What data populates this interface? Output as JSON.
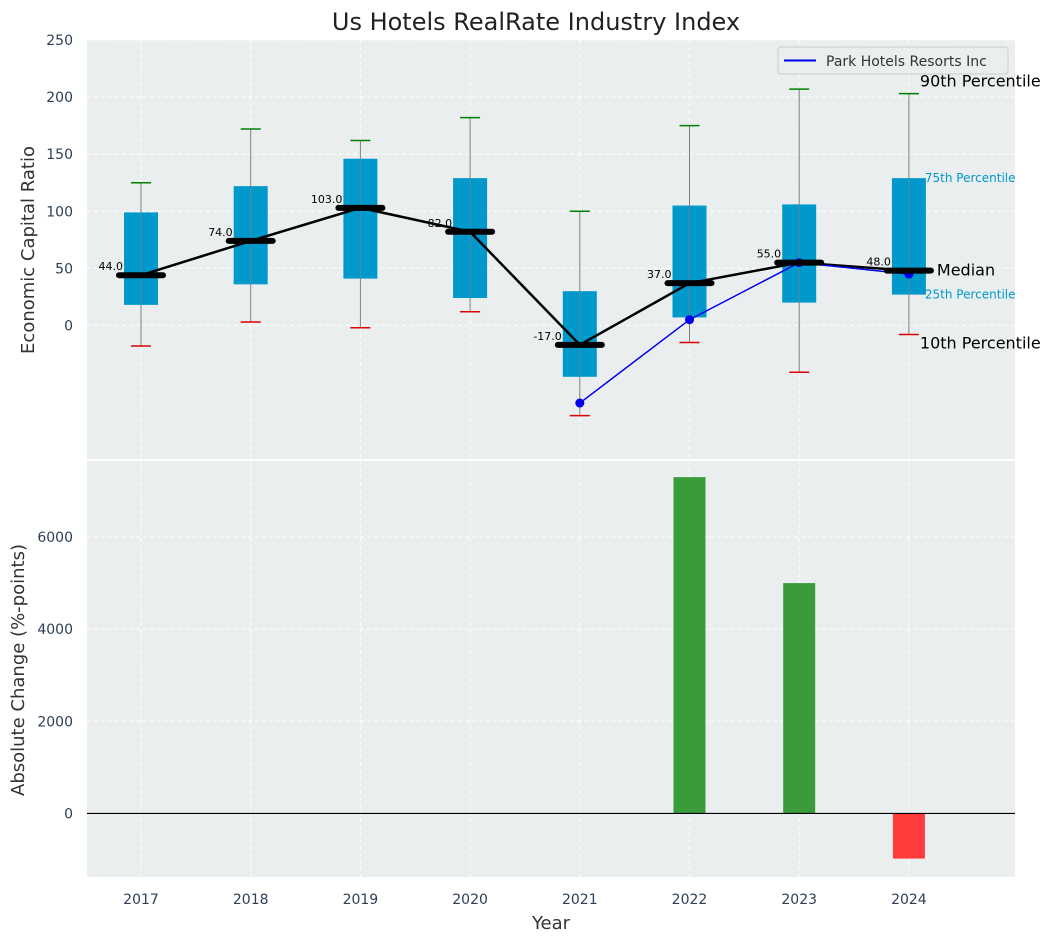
{
  "colors": {
    "box": "#0099cc",
    "median": "#000000",
    "company": "#0000ee",
    "p90": "#008000",
    "p10": "#dd0000",
    "whisker": "#808080",
    "bar_positive": "#3a9b3a",
    "bar_negative": "#ff3b3b",
    "panel_bg": "#eaeeef"
  },
  "chart_data": [
    {
      "type": "box",
      "title": "Us Hotels RealRate Industry Index",
      "ylabel": "Economic Capital Ratio",
      "ylim": [
        -117,
        250
      ],
      "yticks": [
        "0",
        "50",
        "100",
        "150",
        "200",
        "250"
      ],
      "categories": [
        "2017",
        "2018",
        "2019",
        "2020",
        "2021",
        "2022",
        "2023",
        "2024"
      ],
      "median_labels": [
        "44.0",
        "74.0",
        "103.0",
        "82.0",
        "-17.0",
        "37.0",
        "55.0",
        "48.0"
      ],
      "series": [
        {
          "name": "10th Percentile",
          "values": [
            -18,
            3,
            -2,
            12,
            -79,
            -15,
            -41,
            -8
          ]
        },
        {
          "name": "25th Percentile",
          "values": [
            18,
            36,
            41,
            24,
            -45,
            7,
            20,
            27
          ]
        },
        {
          "name": "Median",
          "values": [
            44,
            74,
            103,
            82,
            -17,
            37,
            55,
            48
          ]
        },
        {
          "name": "75th Percentile",
          "values": [
            99,
            122,
            146,
            129,
            30,
            105,
            106,
            129
          ]
        },
        {
          "name": "90th Percentile",
          "values": [
            125,
            172,
            162,
            182,
            100,
            175,
            207,
            203
          ]
        },
        {
          "name": "Park Hotels Resorts Inc",
          "values": [
            null,
            null,
            null,
            null,
            -68,
            5,
            55,
            45
          ]
        }
      ],
      "legend": {
        "position": "top-right",
        "label": "Park Hotels Resorts Inc"
      },
      "annotations": [
        "90th Percentile",
        "75th Percentile",
        "Median",
        "25th Percentile",
        "10th Percentile"
      ]
    },
    {
      "type": "bar",
      "xlabel": "Year",
      "ylabel": "Absolute Change (%-points)",
      "ylim": [
        -1380,
        7650
      ],
      "yticks": [
        "0",
        "2000",
        "4000",
        "6000"
      ],
      "categories": [
        "2017",
        "2018",
        "2019",
        "2020",
        "2021",
        "2022",
        "2023",
        "2024"
      ],
      "values": [
        0,
        0,
        0,
        0,
        0,
        7300,
        5000,
        -980
      ]
    }
  ]
}
